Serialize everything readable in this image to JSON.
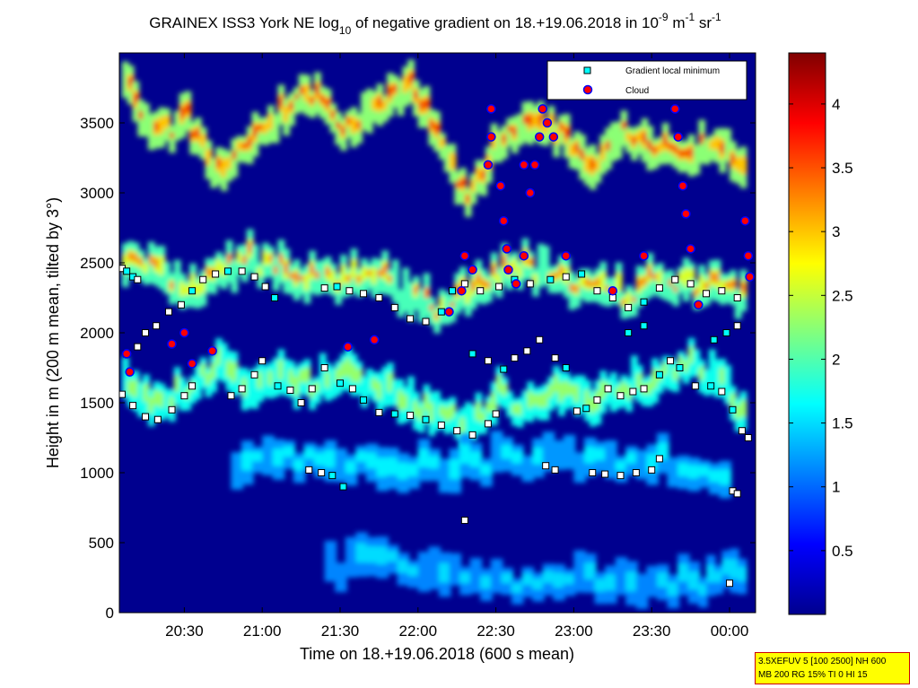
{
  "chart_data": {
    "type": "heatmap",
    "title": {
      "prefix": "GRAINEX ISS3 York NE log",
      "log_base": "10",
      "middle": " of negative gradient on 18.+19.06.2018 in 10",
      "exp1": "-9",
      "unit1": " m",
      "exp2": "-1",
      "unit2": " sr",
      "exp3": "-1"
    },
    "xlabel": "Time on 18.+19.06.2018 (600 s mean)",
    "ylabel": "Height in m (200 m mean, tilted by 3°)",
    "xlim_hours": [
      20.083,
      24.167
    ],
    "ylim": [
      0,
      4000
    ],
    "x_ticks": [
      {
        "value": 20.5,
        "label": "20:30"
      },
      {
        "value": 21.0,
        "label": "21:00"
      },
      {
        "value": 21.5,
        "label": "21:30"
      },
      {
        "value": 22.0,
        "label": "22:00"
      },
      {
        "value": 22.5,
        "label": "22:30"
      },
      {
        "value": 23.0,
        "label": "23:00"
      },
      {
        "value": 23.5,
        "label": "23:30"
      },
      {
        "value": 24.0,
        "label": "00:00"
      }
    ],
    "y_ticks": [
      {
        "value": 0,
        "label": "0"
      },
      {
        "value": 500,
        "label": "500"
      },
      {
        "value": 1000,
        "label": "1000"
      },
      {
        "value": 1500,
        "label": "1500"
      },
      {
        "value": 2000,
        "label": "2000"
      },
      {
        "value": 2500,
        "label": "2500"
      },
      {
        "value": 3000,
        "label": "3000"
      },
      {
        "value": 3500,
        "label": "3500"
      }
    ],
    "colorbar": {
      "colormap": "jet",
      "range": [
        0,
        4.4
      ],
      "ticks": [
        {
          "value": 0.5,
          "label": "0.5"
        },
        {
          "value": 1,
          "label": "1"
        },
        {
          "value": 1.5,
          "label": "1.5"
        },
        {
          "value": 2,
          "label": "2"
        },
        {
          "value": 2.5,
          "label": "2.5"
        },
        {
          "value": 3,
          "label": "3"
        },
        {
          "value": 3.5,
          "label": "3.5"
        },
        {
          "value": 4,
          "label": "4"
        }
      ]
    },
    "legend": {
      "placement": "top-right",
      "entries": [
        {
          "label": "Gradient local minimum",
          "marker": "square",
          "color": "#00ffff"
        },
        {
          "label": "Cloud",
          "marker": "circle",
          "color": "#ff0000",
          "edge": "#0000ff"
        }
      ]
    },
    "background_color": "#00008f",
    "layers": [
      {
        "name": "upper layer",
        "time": [
          20.1,
          20.3,
          20.5,
          20.7,
          20.9,
          21.1,
          21.3,
          21.5,
          21.7,
          21.9,
          22.1,
          22.3,
          22.5,
          22.7,
          22.9,
          23.1,
          23.3,
          23.5,
          23.7,
          23.9,
          24.1
        ],
        "height": [
          2450,
          2350,
          2200,
          2350,
          2450,
          2400,
          2300,
          2300,
          2350,
          2200,
          2100,
          2200,
          2350,
          2400,
          2300,
          2250,
          2200,
          2300,
          2300,
          2250,
          2200
        ],
        "value": 2.6
      },
      {
        "name": "lower layer",
        "time": [
          20.1,
          20.3,
          20.5,
          20.7,
          20.9,
          21.1,
          21.3,
          21.5,
          21.7,
          21.9,
          22.1,
          22.3,
          22.5,
          22.7,
          22.9,
          23.1,
          23.3,
          23.5,
          23.7,
          23.9,
          24.1
        ],
        "height": [
          1550,
          1400,
          1550,
          1700,
          1500,
          1600,
          1550,
          1650,
          1550,
          1450,
          1350,
          1250,
          1500,
          1400,
          1500,
          1450,
          1550,
          1600,
          1750,
          1600,
          1300
        ],
        "value": 2.3
      },
      {
        "name": "cloud band",
        "time": [
          20.1,
          20.3,
          20.5,
          20.7,
          20.9,
          21.1,
          21.3,
          21.5,
          21.7,
          21.9,
          22.1,
          22.3,
          22.5,
          22.7,
          22.9,
          23.1,
          23.3,
          23.5,
          23.7,
          23.9,
          24.1
        ],
        "height": [
          3700,
          3350,
          3450,
          3100,
          3300,
          3500,
          3650,
          3400,
          3550,
          3700,
          3400,
          2850,
          3300,
          3450,
          3350,
          3050,
          3350,
          3250,
          3200,
          3300,
          3100
        ],
        "value": 3.0
      },
      {
        "name": "near-surface signal",
        "time": [
          20.8,
          21.2,
          21.6,
          22.0,
          22.4,
          22.8,
          23.2,
          23.6,
          24.0
        ],
        "height": [
          1000,
          1050,
          1000,
          950,
          1000,
          1050,
          1050,
          1000,
          900
        ],
        "value": 1.6
      },
      {
        "name": "surface band",
        "time": [
          21.4,
          21.8,
          22.2,
          22.6,
          23.0,
          23.4,
          23.8,
          24.1
        ],
        "height": [
          250,
          300,
          200,
          150,
          150,
          150,
          150,
          250
        ],
        "value": 1.5
      }
    ],
    "gradient_minima": [
      {
        "time": 20.1,
        "height": 2460
      },
      {
        "time": 20.13,
        "height": 2440
      },
      {
        "time": 20.17,
        "height": 2400
      },
      {
        "time": 20.2,
        "height": 2380
      },
      {
        "time": 20.1,
        "height": 1560
      },
      {
        "time": 20.17,
        "height": 1480
      },
      {
        "time": 20.25,
        "height": 1400
      },
      {
        "time": 20.33,
        "height": 1380
      },
      {
        "time": 20.42,
        "height": 1450
      },
      {
        "time": 20.5,
        "height": 1550
      },
      {
        "time": 20.55,
        "height": 1620
      },
      {
        "time": 20.13,
        "height": 1850
      },
      {
        "time": 20.2,
        "height": 1900
      },
      {
        "time": 20.25,
        "height": 2000
      },
      {
        "time": 20.32,
        "height": 2050
      },
      {
        "time": 20.4,
        "height": 2150
      },
      {
        "time": 20.48,
        "height": 2200
      },
      {
        "time": 20.55,
        "height": 2300
      },
      {
        "time": 20.62,
        "height": 2380
      },
      {
        "time": 20.7,
        "height": 2420
      },
      {
        "time": 20.78,
        "height": 2440
      },
      {
        "time": 20.87,
        "height": 2440
      },
      {
        "time": 20.95,
        "height": 2400
      },
      {
        "time": 21.02,
        "height": 2330
      },
      {
        "time": 21.08,
        "height": 2250
      },
      {
        "time": 20.8,
        "height": 1550
      },
      {
        "time": 20.87,
        "height": 1600
      },
      {
        "time": 20.95,
        "height": 1700
      },
      {
        "time": 21.0,
        "height": 1800
      },
      {
        "time": 21.1,
        "height": 1620
      },
      {
        "time": 21.18,
        "height": 1590
      },
      {
        "time": 21.25,
        "height": 1500
      },
      {
        "time": 21.32,
        "height": 1600
      },
      {
        "time": 21.4,
        "height": 1750
      },
      {
        "time": 21.3,
        "height": 1020
      },
      {
        "time": 21.38,
        "height": 1000
      },
      {
        "time": 21.45,
        "height": 980
      },
      {
        "time": 21.52,
        "height": 900
      },
      {
        "time": 21.5,
        "height": 1640
      },
      {
        "time": 21.58,
        "height": 1600
      },
      {
        "time": 21.65,
        "height": 1520
      },
      {
        "time": 21.75,
        "height": 1430
      },
      {
        "time": 21.85,
        "height": 1420
      },
      {
        "time": 21.95,
        "height": 1410
      },
      {
        "time": 22.05,
        "height": 1380
      },
      {
        "time": 22.15,
        "height": 1340
      },
      {
        "time": 22.25,
        "height": 1300
      },
      {
        "time": 22.35,
        "height": 1270
      },
      {
        "time": 22.45,
        "height": 1350
      },
      {
        "time": 22.5,
        "height": 1420
      },
      {
        "time": 22.3,
        "height": 660
      },
      {
        "time": 21.4,
        "height": 2320
      },
      {
        "time": 21.48,
        "height": 2330
      },
      {
        "time": 21.56,
        "height": 2300
      },
      {
        "time": 21.65,
        "height": 2280
      },
      {
        "time": 21.75,
        "height": 2250
      },
      {
        "time": 21.85,
        "height": 2180
      },
      {
        "time": 21.95,
        "height": 2100
      },
      {
        "time": 22.05,
        "height": 2080
      },
      {
        "time": 22.15,
        "height": 2150
      },
      {
        "time": 22.22,
        "height": 2300
      },
      {
        "time": 22.3,
        "height": 2350
      },
      {
        "time": 22.4,
        "height": 2300
      },
      {
        "time": 22.52,
        "height": 2330
      },
      {
        "time": 22.62,
        "height": 2380
      },
      {
        "time": 22.72,
        "height": 2350
      },
      {
        "time": 22.85,
        "height": 2380
      },
      {
        "time": 22.95,
        "height": 2400
      },
      {
        "time": 23.05,
        "height": 2420
      },
      {
        "time": 23.15,
        "height": 2300
      },
      {
        "time": 23.25,
        "height": 2250
      },
      {
        "time": 23.35,
        "height": 2180
      },
      {
        "time": 23.45,
        "height": 2220
      },
      {
        "time": 23.55,
        "height": 2320
      },
      {
        "time": 23.65,
        "height": 2380
      },
      {
        "time": 23.75,
        "height": 2350
      },
      {
        "time": 23.85,
        "height": 2280
      },
      {
        "time": 23.95,
        "height": 2300
      },
      {
        "time": 24.05,
        "height": 2250
      },
      {
        "time": 22.35,
        "height": 1850
      },
      {
        "time": 22.45,
        "height": 1800
      },
      {
        "time": 22.55,
        "height": 1740
      },
      {
        "time": 22.62,
        "height": 1820
      },
      {
        "time": 22.7,
        "height": 1870
      },
      {
        "time": 22.78,
        "height": 1950
      },
      {
        "time": 22.88,
        "height": 1820
      },
      {
        "time": 22.95,
        "height": 1750
      },
      {
        "time": 23.02,
        "height": 1440
      },
      {
        "time": 23.08,
        "height": 1460
      },
      {
        "time": 23.15,
        "height": 1520
      },
      {
        "time": 23.22,
        "height": 1600
      },
      {
        "time": 23.3,
        "height": 1550
      },
      {
        "time": 23.38,
        "height": 1580
      },
      {
        "time": 23.45,
        "height": 1600
      },
      {
        "time": 23.55,
        "height": 1700
      },
      {
        "time": 23.62,
        "height": 1800
      },
      {
        "time": 23.68,
        "height": 1750
      },
      {
        "time": 23.78,
        "height": 1620
      },
      {
        "time": 23.88,
        "height": 1620
      },
      {
        "time": 23.95,
        "height": 1580
      },
      {
        "time": 24.02,
        "height": 1450
      },
      {
        "time": 24.08,
        "height": 1300
      },
      {
        "time": 24.12,
        "height": 1250
      },
      {
        "time": 22.82,
        "height": 1050
      },
      {
        "time": 22.88,
        "height": 1020
      },
      {
        "time": 23.12,
        "height": 1000
      },
      {
        "time": 23.2,
        "height": 990
      },
      {
        "time": 23.3,
        "height": 980
      },
      {
        "time": 23.4,
        "height": 1000
      },
      {
        "time": 23.5,
        "height": 1020
      },
      {
        "time": 23.55,
        "height": 1100
      },
      {
        "time": 24.02,
        "height": 870
      },
      {
        "time": 24.05,
        "height": 850
      },
      {
        "time": 23.9,
        "height": 1950
      },
      {
        "time": 23.98,
        "height": 2000
      },
      {
        "time": 24.05,
        "height": 2050
      },
      {
        "time": 23.35,
        "height": 2000
      },
      {
        "time": 23.45,
        "height": 2050
      },
      {
        "time": 24.0,
        "height": 210
      }
    ],
    "clouds": [
      {
        "time": 20.13,
        "height": 1850
      },
      {
        "time": 20.15,
        "height": 1720
      },
      {
        "time": 20.42,
        "height": 1920
      },
      {
        "time": 20.5,
        "height": 2000
      },
      {
        "time": 20.55,
        "height": 1780
      },
      {
        "time": 20.68,
        "height": 1870
      },
      {
        "time": 21.55,
        "height": 1900
      },
      {
        "time": 21.72,
        "height": 1950
      },
      {
        "time": 22.2,
        "height": 2150
      },
      {
        "time": 22.28,
        "height": 2300
      },
      {
        "time": 22.3,
        "height": 2550
      },
      {
        "time": 22.35,
        "height": 2450
      },
      {
        "time": 22.45,
        "height": 3200
      },
      {
        "time": 22.47,
        "height": 3400
      },
      {
        "time": 22.47,
        "height": 3600
      },
      {
        "time": 22.53,
        "height": 3050
      },
      {
        "time": 22.55,
        "height": 2800
      },
      {
        "time": 22.57,
        "height": 2600
      },
      {
        "time": 22.58,
        "height": 2450
      },
      {
        "time": 22.68,
        "height": 3200
      },
      {
        "time": 22.72,
        "height": 3000
      },
      {
        "time": 22.75,
        "height": 3200
      },
      {
        "time": 22.78,
        "height": 3400
      },
      {
        "time": 22.8,
        "height": 3600
      },
      {
        "time": 22.83,
        "height": 3500
      },
      {
        "time": 22.87,
        "height": 3400
      },
      {
        "time": 22.63,
        "height": 2350
      },
      {
        "time": 22.68,
        "height": 2550
      },
      {
        "time": 22.95,
        "height": 2550
      },
      {
        "time": 23.25,
        "height": 2300
      },
      {
        "time": 23.45,
        "height": 2550
      },
      {
        "time": 23.65,
        "height": 3600
      },
      {
        "time": 23.67,
        "height": 3400
      },
      {
        "time": 23.7,
        "height": 3050
      },
      {
        "time": 23.72,
        "height": 2850
      },
      {
        "time": 23.75,
        "height": 2600
      },
      {
        "time": 23.8,
        "height": 2200
      },
      {
        "time": 24.1,
        "height": 2800
      },
      {
        "time": 24.12,
        "height": 2550
      },
      {
        "time": 24.13,
        "height": 2400
      }
    ]
  },
  "info_box": {
    "line1": "3.5XEFUV 5 [100 2500] NH 600",
    "line2": "MB 200 RG 15% TI 0 HI 15"
  }
}
